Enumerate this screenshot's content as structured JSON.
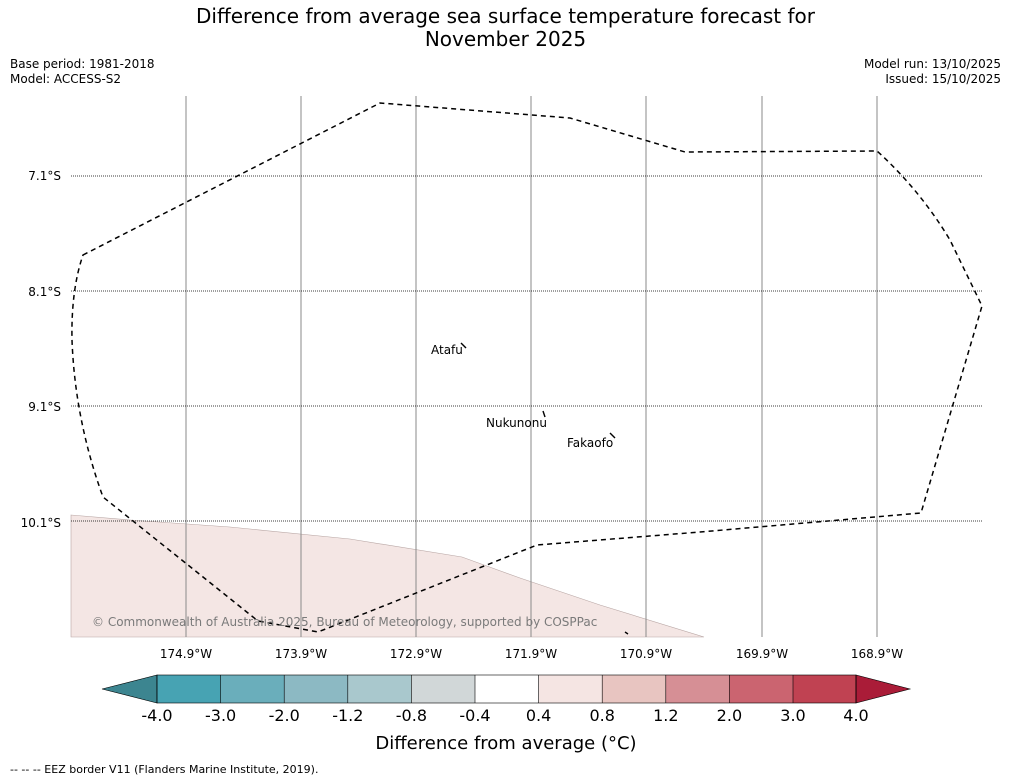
{
  "title_line1": "Difference from average sea surface temperature forecast for",
  "title_line2": "November 2025",
  "base_period": "Base period: 1981-2018",
  "model": "Model: ACCESS-S2",
  "model_run": "Model run: 13/10/2025",
  "issued": "Issued: 15/10/2025",
  "map": {
    "lat_labels": [
      "7.1°S",
      "8.1°S",
      "9.1°S",
      "10.1°S"
    ],
    "lon_labels": [
      "174.9°W",
      "173.9°W",
      "172.9°W",
      "171.9°W",
      "170.9°W",
      "169.9°W",
      "168.9°W"
    ],
    "places": [
      "Atafu",
      "Nukunonu",
      "Fakaofo"
    ],
    "copyright": "© Commonwealth of Australia 2025, Bureau of Meteorology, supported by COSPPac",
    "anomaly_fill_color": "#f4e6e4",
    "eez_color": "#000000"
  },
  "colorbar": {
    "tick_labels": [
      "-4.0",
      "-3.0",
      "-2.0",
      "-1.2",
      "-0.8",
      "-0.4",
      "0.4",
      "0.8",
      "1.2",
      "2.0",
      "3.0",
      "4.0"
    ],
    "colors": [
      "#3c8590",
      "#47a3b3",
      "#6aaebb",
      "#8cb9c3",
      "#a9c8cd",
      "#d1d7d8",
      "#ffffff",
      "#f5e5e3",
      "#e8c5c1",
      "#d68f95",
      "#cb6470",
      "#c04252",
      "#aa1c38"
    ],
    "label": "Difference from average (°C)"
  },
  "credit": "--  --  -- EEZ border V11 (Flanders Marine Institute, 2019)."
}
